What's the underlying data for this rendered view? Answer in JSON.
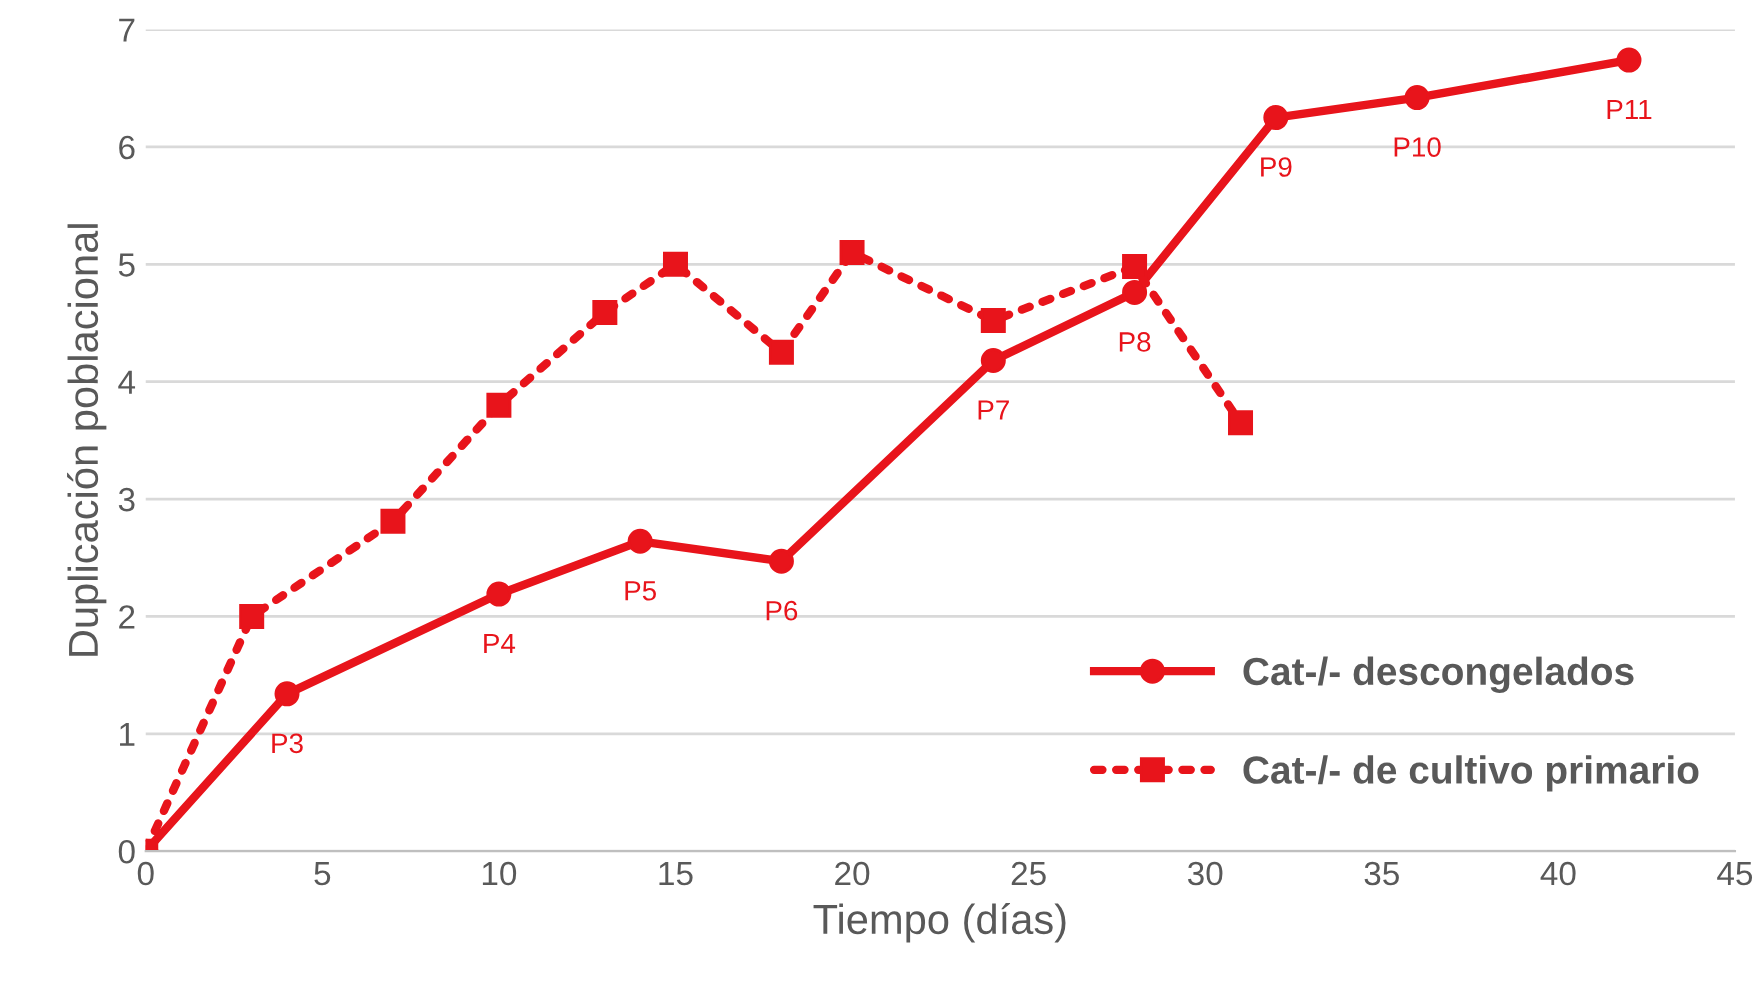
{
  "chart_data": {
    "type": "line",
    "xlabel": "Tiempo (días)",
    "ylabel": "Duplicación poblacional",
    "xlim": [
      0,
      45
    ],
    "xticks": [
      0,
      5,
      10,
      15,
      20,
      25,
      30,
      35,
      40,
      45
    ],
    "ylim": [
      0,
      7
    ],
    "yticks": [
      0,
      1,
      2,
      3,
      4,
      5,
      6,
      7
    ],
    "grid": "y",
    "legend": "bottom right",
    "series": [
      {
        "name": "Cat-/- descongelados",
        "color": "#e8141b",
        "marker": "circle",
        "line_style": "solid",
        "x": [
          0,
          4,
          10,
          14,
          18,
          24,
          28,
          32,
          36,
          42
        ],
        "values": [
          0,
          1.34,
          2.19,
          2.64,
          2.47,
          4.18,
          4.76,
          6.25,
          6.42,
          6.74
        ]
      },
      {
        "name": "Cat-/- de cultivo primario",
        "color": "#e8141b",
        "marker": "square",
        "line_style": "dotted",
        "x": [
          0,
          3,
          7,
          10,
          13,
          15,
          18,
          20,
          24,
          28,
          31
        ],
        "values": [
          0,
          2.0,
          2.81,
          3.8,
          4.59,
          5.0,
          4.25,
          5.1,
          4.52,
          4.98,
          3.65
        ]
      }
    ],
    "annotations": [
      {
        "text": "P3",
        "x": 4,
        "y": 1.34
      },
      {
        "text": "P4",
        "x": 10,
        "y": 2.19
      },
      {
        "text": "P5",
        "x": 14,
        "y": 2.64
      },
      {
        "text": "P6",
        "x": 18,
        "y": 2.47
      },
      {
        "text": "P7",
        "x": 24,
        "y": 4.18
      },
      {
        "text": "P8",
        "x": 28,
        "y": 4.76
      },
      {
        "text": "P9",
        "x": 32,
        "y": 6.25
      },
      {
        "text": "P10",
        "x": 36,
        "y": 6.42
      },
      {
        "text": "P11",
        "x": 42,
        "y": 6.74
      }
    ]
  }
}
